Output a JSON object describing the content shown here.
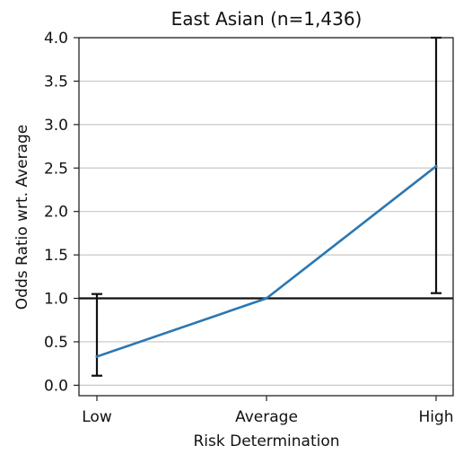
{
  "chart_data": {
    "type": "line",
    "title": "East Asian (n=1,436)",
    "xlabel": "Risk Determination",
    "ylabel": "Odds Ratio wrt. Average",
    "categories": [
      "Low",
      "Average",
      "High"
    ],
    "series": [
      {
        "values": [
          0.33,
          1.0,
          2.52
        ],
        "error_low": [
          0.11,
          1.0,
          1.06
        ],
        "error_high": [
          1.05,
          1.0,
          4.0
        ],
        "color": "#2a77b4"
      }
    ],
    "reference_line": 1.0,
    "ylim": [
      -0.12,
      4.0
    ],
    "yticks": [
      "0.0",
      "0.5",
      "1.0",
      "1.5",
      "2.0",
      "2.5",
      "3.0",
      "3.5",
      "4.0"
    ],
    "grid": "horizontal",
    "legend": "none"
  }
}
